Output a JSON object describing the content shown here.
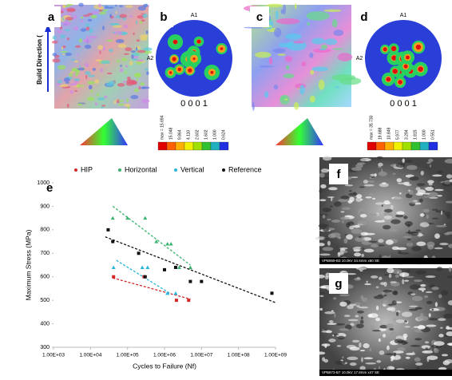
{
  "panel_labels": [
    "a",
    "b",
    "c",
    "d",
    "e",
    "f",
    "g"
  ],
  "build_direction": "Build Direction (",
  "pole_figures": [
    {
      "a1": "A1",
      "a2": "A2",
      "plane": "0 0 0 1",
      "scale": [
        "max = 15.694",
        "15.048",
        "9.864",
        "4.110",
        "2.602",
        "1.602",
        "1.000",
        "0.624"
      ]
    },
    {
      "a1": "A1",
      "a2": "A2",
      "plane": "0 0 0 1",
      "scale": [
        "max = 35.730",
        "19.688",
        "10.849",
        "5.977",
        "3.294",
        "1.815",
        "1.000",
        "0.551"
      ]
    }
  ],
  "sem_captions": [
    "VPB869-B3 10.0kV 34.5mm x60 SE",
    "VPB873-B7 10.0kV 17.8mm x47 SE"
  ],
  "chart_data": {
    "type": "scatter",
    "x_label": "Cycles to Failure (Nf)",
    "y_label": "Maximum Stress (MPa)",
    "xlog": true,
    "xlim": [
      1000,
      1000000000
    ],
    "ylim": [
      300,
      1000
    ],
    "xticks": [
      {
        "value": 1000,
        "label": "1.00E+03"
      },
      {
        "value": 10000,
        "label": "1.00E+04"
      },
      {
        "value": 100000,
        "label": "1.00E+05"
      },
      {
        "value": 1000000,
        "label": "1.00E+06"
      },
      {
        "value": 10000000,
        "label": "1.00E+07"
      },
      {
        "value": 100000000,
        "label": "1.00E+08"
      },
      {
        "value": 1000000000,
        "label": "1.00E+09"
      }
    ],
    "yticks": [
      300,
      400,
      500,
      600,
      700,
      800,
      900,
      1000
    ],
    "series": [
      {
        "name": "HIP",
        "color": "#d62728",
        "x": [
          42000,
          280000,
          2100000,
          4500000
        ],
        "values": [
          600,
          600,
          500,
          500
        ],
        "trend": {
          "x": [
            40000,
            5000000
          ],
          "values": [
            595,
            505
          ]
        }
      },
      {
        "name": "Horizontal",
        "color": "#3cb371",
        "x": [
          40000,
          100000,
          300000,
          600000,
          1200000,
          1500000,
          2500000,
          5000000
        ],
        "values": [
          850,
          850,
          850,
          750,
          740,
          740,
          640,
          640
        ],
        "trend": {
          "x": [
            40000,
            5000000
          ],
          "values": [
            900,
            650
          ]
        }
      },
      {
        "name": "Vertical",
        "color": "#29b6d8",
        "x": [
          42000,
          250000,
          350000,
          1200000,
          2000000
        ],
        "values": [
          640,
          640,
          640,
          530,
          530
        ],
        "trend": {
          "x": [
            50000,
            1500000
          ],
          "values": [
            670,
            527
          ]
        }
      },
      {
        "name": "Reference",
        "color": "#111111",
        "x": [
          30000,
          40000,
          200000,
          300000,
          1000000,
          2000000,
          5000000,
          10000000,
          800000000
        ],
        "values": [
          800,
          750,
          700,
          600,
          630,
          640,
          580,
          580,
          530
        ],
        "trend": {
          "x": [
            25000,
            1000000000
          ],
          "values": [
            770,
            490
          ]
        }
      }
    ]
  }
}
